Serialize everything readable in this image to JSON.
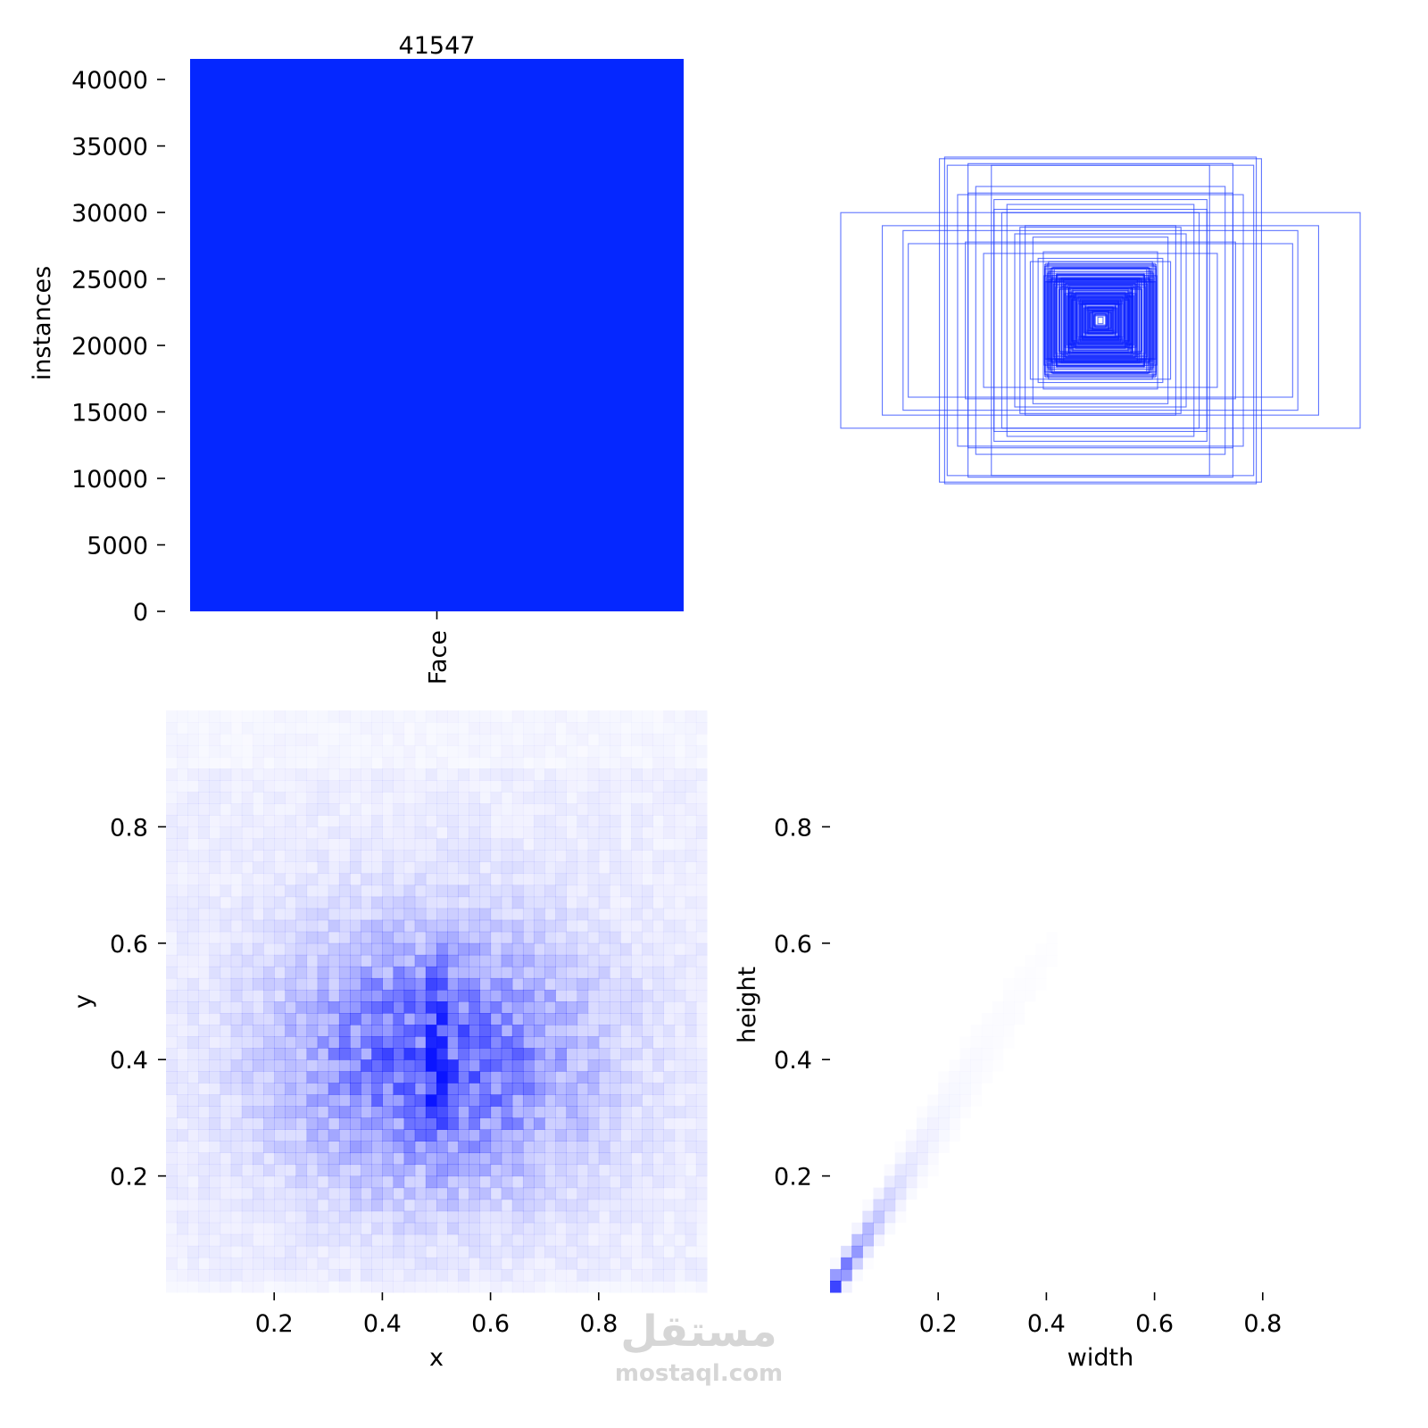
{
  "chart_data": [
    {
      "type": "bar",
      "categories": [
        "Face"
      ],
      "values": [
        41547
      ],
      "data_labels": [
        "41547"
      ],
      "ylabel": "instances",
      "ylim": [
        0,
        41547
      ],
      "yticks": [
        0,
        5000,
        10000,
        15000,
        20000,
        25000,
        30000,
        35000,
        40000
      ],
      "ytick_labels": [
        "0",
        "5000",
        "10000",
        "15000",
        "20000",
        "25000",
        "30000",
        "35000",
        "40000"
      ],
      "color": "#0527ff"
    },
    {
      "type": "scatter",
      "description_kind": "bounding-box outlines centered on image",
      "color": "#2a47ff",
      "boxes_wh": [
        [
          0.62,
          0.99
        ],
        [
          0.6,
          1.0
        ],
        [
          0.51,
          0.96
        ],
        [
          0.59,
          0.95
        ],
        [
          1.0,
          0.66
        ],
        [
          0.84,
          0.58
        ],
        [
          0.74,
          0.47
        ],
        [
          0.42,
          0.95
        ],
        [
          0.76,
          0.55
        ],
        [
          0.55,
          0.77
        ],
        [
          0.51,
          0.78
        ],
        [
          0.48,
          0.82
        ],
        [
          0.41,
          0.74
        ],
        [
          0.36,
          0.71
        ],
        [
          0.38,
          0.66
        ],
        [
          0.41,
          0.68
        ],
        [
          0.31,
          0.57
        ],
        [
          0.29,
          0.58
        ],
        [
          0.33,
          0.53
        ],
        [
          0.52,
          0.48
        ],
        [
          0.45,
          0.41
        ],
        [
          0.26,
          0.51
        ],
        [
          0.22,
          0.42
        ],
        [
          0.24,
          0.38
        ],
        [
          0.27,
          0.36
        ],
        [
          0.19,
          0.32
        ],
        [
          0.2,
          0.36
        ],
        [
          0.17,
          0.28
        ],
        [
          0.15,
          0.26
        ],
        [
          0.18,
          0.24
        ],
        [
          0.14,
          0.22
        ],
        [
          0.12,
          0.2
        ],
        [
          0.16,
          0.19
        ],
        [
          0.11,
          0.18
        ],
        [
          0.1,
          0.16
        ],
        [
          0.13,
          0.15
        ],
        [
          0.09,
          0.14
        ],
        [
          0.08,
          0.12
        ],
        [
          0.07,
          0.11
        ],
        [
          0.06,
          0.1
        ],
        [
          0.05,
          0.08
        ],
        [
          0.04,
          0.06
        ],
        [
          0.03,
          0.05
        ],
        [
          0.02,
          0.04
        ],
        [
          0.01,
          0.02
        ]
      ]
    },
    {
      "type": "heatmap",
      "xlabel": "x",
      "ylabel": "y",
      "xlim": [
        0,
        1
      ],
      "ylim": [
        0,
        1
      ],
      "xticks": [
        0.2,
        0.4,
        0.6,
        0.8
      ],
      "xtick_labels": [
        "0.2",
        "0.4",
        "0.6",
        "0.8"
      ],
      "yticks": [
        0.2,
        0.4,
        0.6,
        0.8
      ],
      "ytick_labels": [
        "0.2",
        "0.4",
        "0.6",
        "0.8"
      ],
      "bins": 50,
      "peak": {
        "x": 0.5,
        "y": 0.4
      },
      "spread": {
        "x": 0.19,
        "y": 0.15
      },
      "color": "#0a14ff"
    },
    {
      "type": "heatmap",
      "xlabel": "width",
      "ylabel": "height",
      "xlim": [
        0,
        1
      ],
      "ylim": [
        0,
        1
      ],
      "xticks": [
        0.2,
        0.4,
        0.6,
        0.8
      ],
      "xtick_labels": [
        "0.2",
        "0.4",
        "0.6",
        "0.8"
      ],
      "yticks": [
        0.2,
        0.4,
        0.6,
        0.8
      ],
      "ytick_labels": [
        "0.2",
        "0.4",
        "0.6",
        "0.8"
      ],
      "bins": 50,
      "ridge_ratio": 1.45,
      "peak": {
        "width": 0.03,
        "height": 0.05
      },
      "color": "#0a14ff"
    }
  ],
  "watermark": {
    "arabic": "مستقل",
    "latin": "mostaql.com"
  }
}
